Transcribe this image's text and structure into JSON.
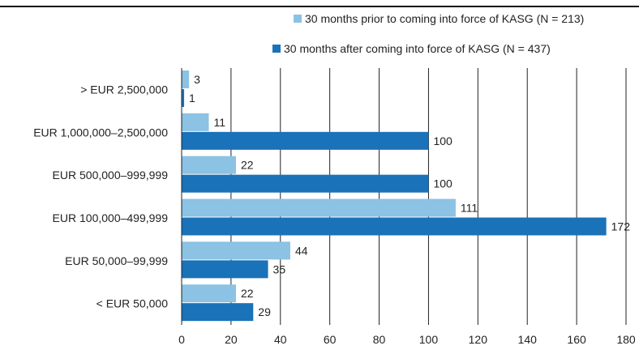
{
  "chart_data": {
    "type": "bar",
    "orientation": "horizontal",
    "title": "",
    "xlabel": "",
    "ylabel": "",
    "categories": [
      "> EUR 2,500,000",
      "EUR 1,000,000–2,500,000",
      "EUR 500,000–999,999",
      "EUR 100,000–499,999",
      "EUR 50,000–99,999",
      "< EUR 50,000"
    ],
    "series": [
      {
        "name": "30 months prior to coming into force of KASG (N = 213)",
        "color": "#8cc2e3",
        "values": [
          3,
          11,
          22,
          111,
          44,
          22
        ]
      },
      {
        "name": "30 months after coming into force of KASG (N = 437)",
        "color": "#1a72b8",
        "values": [
          1,
          100,
          100,
          172,
          35,
          29
        ]
      }
    ],
    "xlim": [
      0,
      180
    ],
    "xticks": [
      "0",
      "20",
      "40",
      "60",
      "80",
      "100",
      "120",
      "140",
      "160",
      "180"
    ],
    "grid": "vertical",
    "legend": "top-right"
  }
}
